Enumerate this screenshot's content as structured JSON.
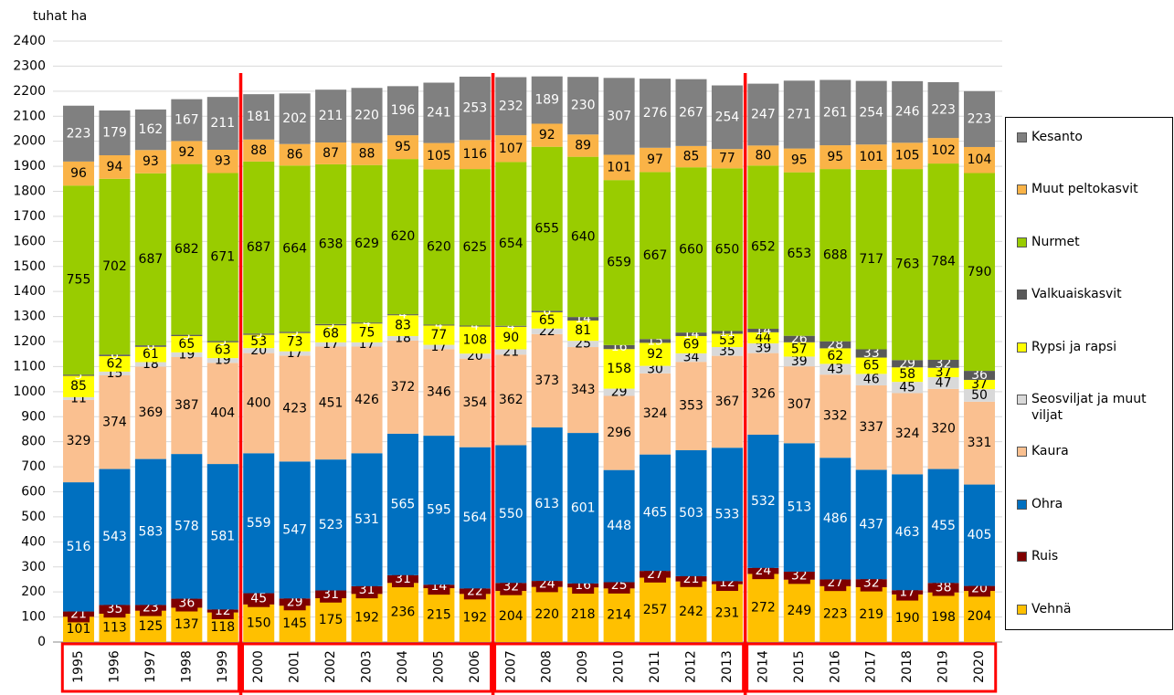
{
  "chart_data": {
    "type": "stacked_bar",
    "y_label": "tuhat ha",
    "categories": [
      "1995",
      "1996",
      "1997",
      "1998",
      "1999",
      "2000",
      "2001",
      "2002",
      "2003",
      "2004",
      "2005",
      "2006",
      "2007",
      "2008",
      "2009",
      "2010",
      "2011",
      "2012",
      "2013",
      "2014",
      "2015",
      "2016",
      "2017",
      "2018",
      "2019",
      "2020"
    ],
    "series": [
      {
        "name": "Vehnä",
        "color": "#ffc000",
        "label_color": "#000000",
        "values": [
          101,
          113,
          125,
          137,
          118,
          150,
          145,
          175,
          192,
          236,
          215,
          192,
          204,
          220,
          218,
          214,
          257,
          242,
          231,
          272,
          249,
          223,
          219,
          190,
          198,
          204
        ]
      },
      {
        "name": "Ruis",
        "color": "#7f0000",
        "label_color": "#ffffff",
        "values": [
          21,
          35,
          23,
          36,
          12,
          45,
          29,
          31,
          31,
          31,
          14,
          22,
          32,
          24,
          16,
          25,
          27,
          21,
          12,
          24,
          32,
          27,
          32,
          17,
          38,
          20
        ]
      },
      {
        "name": "Ohra",
        "color": "#0070c0",
        "label_color": "#ffffff",
        "values": [
          516,
          543,
          583,
          578,
          581,
          559,
          547,
          523,
          531,
          565,
          595,
          564,
          550,
          613,
          601,
          448,
          465,
          503,
          533,
          532,
          513,
          486,
          437,
          463,
          455,
          405
        ]
      },
      {
        "name": "Kaura",
        "color": "#fac090",
        "label_color": "#000000",
        "values": [
          329,
          374,
          369,
          387,
          404,
          400,
          423,
          451,
          426,
          372,
          346,
          354,
          362,
          373,
          343,
          296,
          324,
          353,
          367,
          326,
          307,
          332,
          337,
          324,
          320,
          331
        ]
      },
      {
        "name": "Seosviljat ja muut viljat",
        "color": "#d9d9d9",
        "label_color": "#000000",
        "values": [
          11,
          15,
          18,
          19,
          19,
          20,
          17,
          17,
          17,
          18,
          17,
          20,
          21,
          22,
          25,
          29,
          30,
          34,
          35,
          39,
          39,
          43,
          46,
          45,
          47,
          50
        ]
      },
      {
        "name": "Rypsi ja rapsi",
        "color": "#ffff00",
        "label_color": "#000000",
        "values": [
          85,
          62,
          61,
          65,
          63,
          53,
          73,
          68,
          75,
          83,
          77,
          108,
          90,
          65,
          81,
          158,
          92,
          69,
          53,
          44,
          57,
          62,
          65,
          58,
          37,
          37
        ]
      },
      {
        "name": "Valkuaiskasvit",
        "color": "#595959",
        "label_color": "#ffffff",
        "values": [
          5,
          6,
          6,
          5,
          5,
          5,
          5,
          5,
          4,
          4,
          4,
          4,
          4,
          6,
          14,
          16,
          15,
          14,
          11,
          14,
          26,
          28,
          33,
          29,
          32,
          36
        ]
      },
      {
        "name": "Nurmet",
        "color": "#99cc00",
        "label_color": "#000000",
        "values": [
          755,
          702,
          687,
          682,
          671,
          687,
          664,
          638,
          629,
          620,
          620,
          625,
          654,
          655,
          640,
          659,
          667,
          660,
          650,
          652,
          653,
          688,
          717,
          763,
          784,
          790
        ]
      },
      {
        "name": "Muut peltokasvit",
        "color": "#fab347",
        "label_color": "#000000",
        "values": [
          96,
          94,
          93,
          92,
          93,
          88,
          86,
          87,
          88,
          95,
          105,
          116,
          107,
          92,
          89,
          101,
          97,
          85,
          77,
          80,
          95,
          95,
          101,
          105,
          102,
          104
        ]
      },
      {
        "name": "Kesanto",
        "color": "#808080",
        "label_color": "#ffffff",
        "values": [
          223,
          179,
          162,
          167,
          211,
          181,
          202,
          211,
          220,
          196,
          241,
          253,
          232,
          189,
          230,
          307,
          276,
          267,
          254,
          247,
          271,
          261,
          254,
          246,
          223,
          223
        ]
      }
    ],
    "ylim": [
      0,
      2400
    ],
    "yticks": [
      0,
      100,
      200,
      300,
      400,
      500,
      600,
      700,
      800,
      900,
      1000,
      1100,
      1200,
      1300,
      1400,
      1500,
      1600,
      1700,
      1800,
      1900,
      2000,
      2100,
      2200,
      2300,
      2400
    ],
    "grid": true,
    "legend": "right"
  }
}
